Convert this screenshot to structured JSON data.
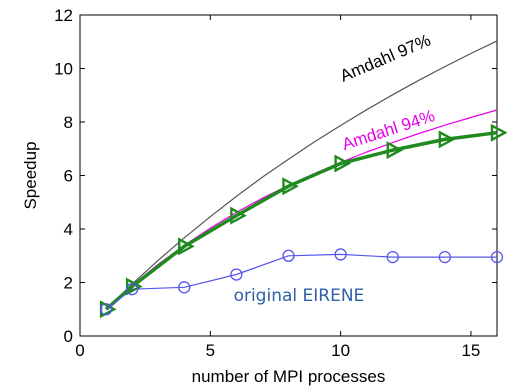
{
  "chart_data": {
    "type": "line",
    "xlabel": "number of MPI processes",
    "ylabel": "Speedup",
    "xlim": [
      0,
      16
    ],
    "ylim": [
      0,
      12
    ],
    "xticks": [
      0,
      5,
      10,
      15
    ],
    "yticks": [
      0,
      2,
      4,
      6,
      8,
      10,
      12
    ],
    "grid": false,
    "series": [
      {
        "name": "Amdahl 97%",
        "color": "#555555",
        "marker": "none",
        "x": [
          1,
          2,
          3,
          4,
          5,
          6,
          7,
          8,
          9,
          10,
          11,
          12,
          13,
          14,
          15,
          16
        ],
        "y": [
          1.0,
          1.94,
          2.83,
          3.67,
          4.46,
          5.22,
          5.94,
          6.61,
          7.26,
          7.87,
          8.46,
          9.02,
          9.56,
          10.07,
          10.56,
          11.03
        ]
      },
      {
        "name": "Amdahl 94%",
        "color": "#e800e8",
        "marker": "none",
        "x": [
          1,
          2,
          3,
          4,
          5,
          6,
          7,
          8,
          9,
          10,
          11,
          12,
          13,
          14,
          15,
          16
        ],
        "y": [
          1.0,
          1.89,
          2.68,
          3.39,
          4.03,
          4.62,
          5.15,
          5.63,
          6.08,
          6.49,
          6.88,
          7.23,
          7.57,
          7.88,
          8.17,
          8.45
        ]
      },
      {
        "name": "",
        "color": "#1f8a1f",
        "marker": "triangle-right",
        "x": [
          1,
          2,
          4,
          6,
          8,
          10,
          12,
          14,
          16
        ],
        "y": [
          1.0,
          1.85,
          3.35,
          4.5,
          5.6,
          6.45,
          6.95,
          7.35,
          7.6
        ]
      },
      {
        "name": "original EIRENE",
        "color": "#5555ee",
        "marker": "circle",
        "x": [
          1,
          2,
          4,
          6,
          8,
          10,
          12,
          14,
          16
        ],
        "y": [
          1.0,
          1.75,
          1.82,
          2.3,
          3.0,
          3.05,
          2.95,
          2.95,
          2.95
        ]
      }
    ],
    "annotations": [
      {
        "text": "Amdahl 97%",
        "x": 11.8,
        "y": 10.2,
        "rotation": -23,
        "color": "#000000"
      },
      {
        "text": "Amdahl 94%",
        "x": 11.9,
        "y": 7.5,
        "rotation": -18,
        "color": "#e800e8"
      },
      {
        "text": "original EIRENE",
        "x": 8.4,
        "y": 1.3,
        "rotation": 0,
        "color": "#2e5fa8"
      }
    ]
  }
}
